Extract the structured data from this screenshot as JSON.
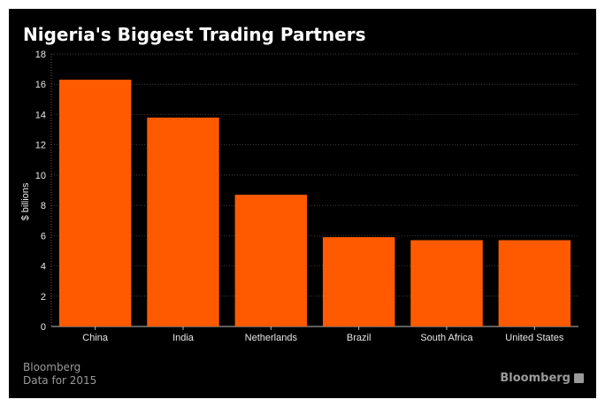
{
  "chart_data": {
    "type": "bar",
    "title": "Nigeria's Biggest Trading Partners",
    "ylabel": "$ billions",
    "xlabel": "",
    "categories": [
      "China",
      "India",
      "Netherlands",
      "Brazil",
      "South Africa",
      "United States"
    ],
    "values": [
      16.3,
      13.8,
      8.7,
      5.9,
      5.7,
      5.7
    ],
    "ylim": [
      0,
      18
    ],
    "yticks": [
      0,
      2,
      4,
      6,
      8,
      10,
      12,
      14,
      16,
      18
    ],
    "grid": true,
    "bar_color": "#ff5a00",
    "background": "#000000"
  },
  "footer": {
    "source": "Bloomberg",
    "note": "Data for 2015",
    "brand": "Bloomberg"
  }
}
